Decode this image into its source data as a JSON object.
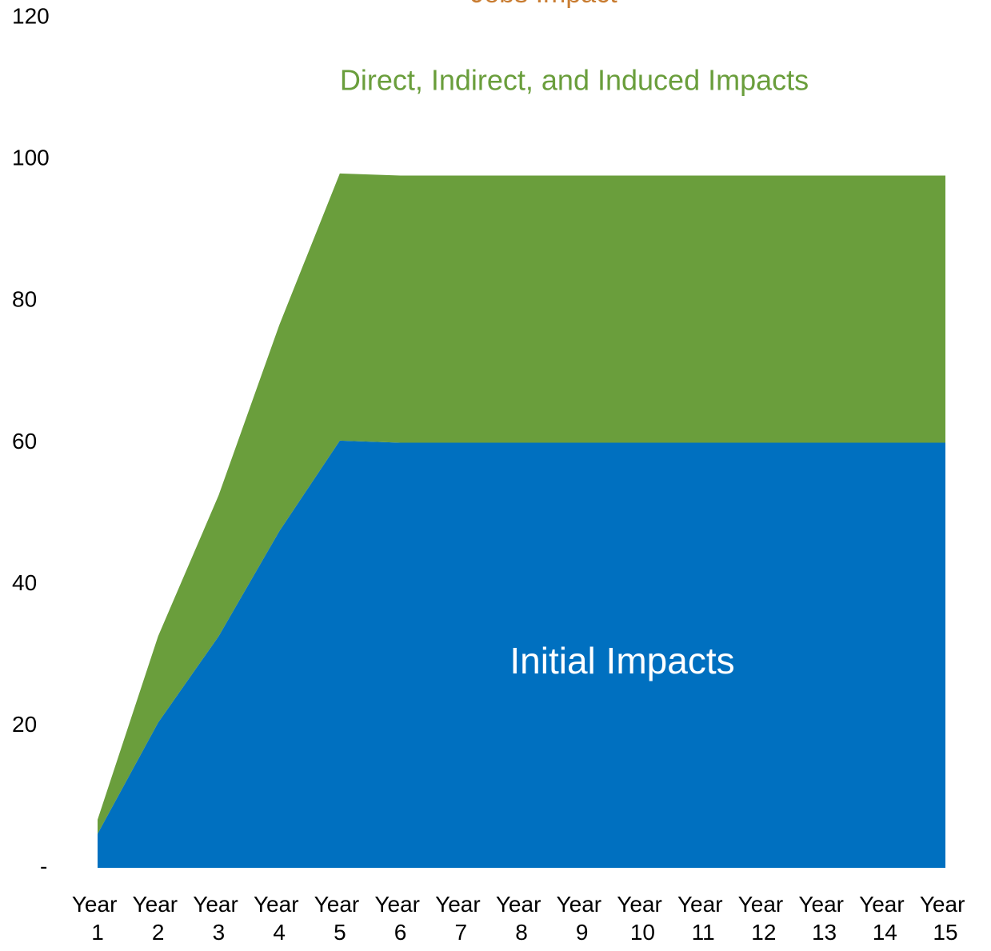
{
  "chart_data": {
    "type": "stacked_area",
    "title": "Jobs Impact",
    "title_color": "#c97d32",
    "categories": [
      "Year 1",
      "Year 2",
      "Year 3",
      "Year 4",
      "Year 5",
      "Year 6",
      "Year 7",
      "Year 8",
      "Year 9",
      "Year 10",
      "Year 11",
      "Year 12",
      "Year 13",
      "Year 14",
      "Year 15"
    ],
    "series": [
      {
        "name": "Initial Impacts",
        "color": "#0070c0",
        "values": [
          4.8,
          20.5,
          32.7,
          47.5,
          60.3,
          60,
          60,
          60,
          60,
          60,
          60,
          60,
          60,
          60,
          60
        ]
      },
      {
        "name": "Direct, Indirect, and Induced Impacts",
        "color": "#6a9e3c",
        "values": [
          2,
          12.2,
          19.9,
          29.1,
          37.7,
          37.7,
          37.7,
          37.7,
          37.7,
          37.7,
          37.7,
          37.7,
          37.7,
          37.7,
          37.7
        ]
      }
    ],
    "ylim": [
      0,
      120
    ],
    "yticks": [
      {
        "value": 0,
        "label": "-"
      },
      20,
      40,
      60,
      80,
      100,
      120
    ]
  }
}
